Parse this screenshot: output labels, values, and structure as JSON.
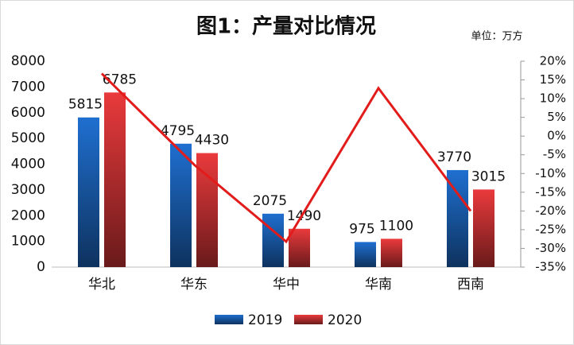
{
  "chart_data": {
    "type": "bar-line",
    "title": "图1：产量对比情况",
    "subtitle": "单位：万方",
    "categories": [
      "华北",
      "华东",
      "华中",
      "华南",
      "西南"
    ],
    "series": [
      {
        "name": "2019",
        "color": "#1f6fd0",
        "type": "bar",
        "values": [
          5815,
          4795,
          2075,
          975,
          3770
        ]
      },
      {
        "name": "2020",
        "color": "#ea3a3c",
        "type": "bar",
        "values": [
          6785,
          4430,
          1490,
          1100,
          3015
        ]
      },
      {
        "color": "#e21b1b",
        "type": "line",
        "axis": "y2",
        "values": [
          16.7,
          -7.6,
          -28.2,
          12.8,
          -20.0
        ]
      }
    ],
    "ylim": [
      0,
      8000
    ],
    "yticks": [
      0,
      1000,
      2000,
      3000,
      4000,
      5000,
      6000,
      7000,
      8000
    ],
    "y2lim": [
      -35,
      20
    ],
    "y2ticks": [
      {
        "value": -35,
        "label": "-35%"
      },
      {
        "value": -30,
        "label": "-30%"
      },
      {
        "value": -25,
        "label": "-25%"
      },
      {
        "value": -20,
        "label": "-20%"
      },
      {
        "value": -15,
        "label": "-15%"
      },
      {
        "value": -10,
        "label": "-10%"
      },
      {
        "value": -5,
        "label": "-5%"
      },
      {
        "value": 0,
        "label": "0%"
      },
      {
        "value": 5,
        "label": "5%"
      },
      {
        "value": 10,
        "label": "10%"
      },
      {
        "value": 15,
        "label": "15%"
      },
      {
        "value": 20,
        "label": "20%"
      }
    ],
    "legend": "bottom"
  }
}
